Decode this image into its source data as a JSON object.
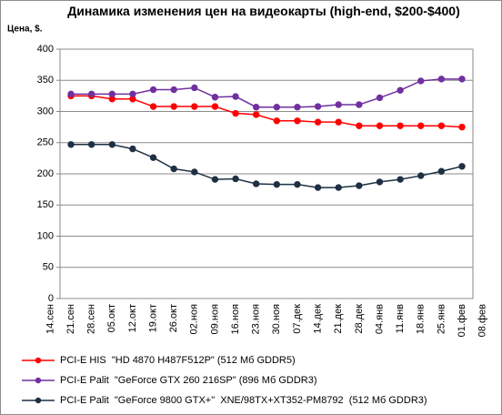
{
  "chart_data": {
    "type": "line",
    "title": "Динамика изменения цен на видеокарты (high-end, $200-$400)",
    "y_label": "Цена, $.",
    "categories": [
      "14.сен",
      "21.сен",
      "28.сен",
      "05.окт",
      "12.окт",
      "19.окт",
      "26.окт",
      "02.ноя",
      "09.ноя",
      "16.ноя",
      "23.ноя",
      "30.ноя",
      "07.дек",
      "14.дек",
      "21.дек",
      "28.дек",
      "04.янв",
      "11.янв",
      "18.янв",
      "25.янв",
      "01.фев",
      "08.фев"
    ],
    "series": [
      {
        "name": "PCI-E HIS  \"HD 4870 H487F512P\" (512 Мб GDDR5)",
        "color": "#ff0000",
        "values": [
          null,
          325,
          325,
          320,
          320,
          308,
          308,
          308,
          308,
          297,
          295,
          285,
          285,
          283,
          283,
          277,
          277,
          277,
          277,
          277,
          275,
          null
        ]
      },
      {
        "name": "PCI-E Palit  \"GeForce GTX 260 216SP\" (896 Мб GDDR3)",
        "color": "#7030a0",
        "values": [
          null,
          328,
          328,
          328,
          328,
          335,
          335,
          338,
          323,
          324,
          307,
          307,
          307,
          308,
          311,
          311,
          322,
          334,
          349,
          352,
          352,
          null
        ]
      },
      {
        "name": "PCI-E Palit  \"GeForce 9800 GTX+\"  XNE/98TX+XT352-PM8792  (512 Мб GDDR3)",
        "color": "#1f3044",
        "values": [
          null,
          247,
          247,
          247,
          240,
          226,
          208,
          203,
          191,
          192,
          184,
          183,
          183,
          178,
          178,
          181,
          187,
          191,
          197,
          204,
          212,
          null
        ]
      }
    ],
    "ylim": [
      0,
      400
    ],
    "yticks": [
      0,
      50,
      100,
      150,
      200,
      250,
      300,
      350,
      400
    ],
    "grid": true,
    "legend": "bottom"
  }
}
